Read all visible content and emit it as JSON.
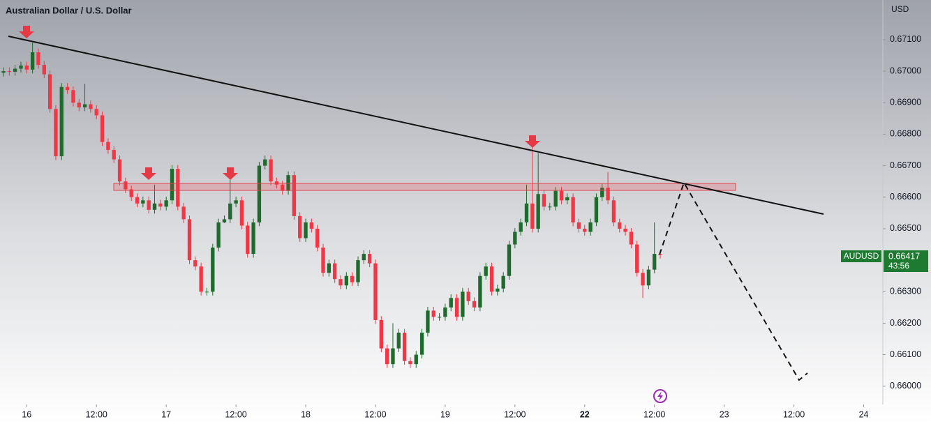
{
  "chart_data": {
    "type": "candlestick",
    "title": "Australian Dollar / U.S. Dollar",
    "currency": "USD",
    "symbol": "AUDUSD",
    "last_price_label": "0.66417",
    "countdown": "43:56",
    "up_color": "#1f6b2d",
    "down_color": "#f23645",
    "xlim": [
      -0.6,
      151.3
    ],
    "ylim": [
      0.65942,
      0.67226
    ],
    "xticks": [
      {
        "value": 4,
        "label": "16"
      },
      {
        "value": 16,
        "label": "12:00"
      },
      {
        "value": 28,
        "label": "17"
      },
      {
        "value": 40,
        "label": "12:00"
      },
      {
        "value": 52,
        "label": "18"
      },
      {
        "value": 64,
        "label": "12:00"
      },
      {
        "value": 76,
        "label": "19"
      },
      {
        "value": 88,
        "label": "12:00"
      },
      {
        "value": 100,
        "label": "22"
      },
      {
        "value": 112,
        "label": "12:00"
      },
      {
        "value": 124,
        "label": "23"
      },
      {
        "value": 136,
        "label": "12:00"
      },
      {
        "value": 148,
        "label": "24"
      }
    ],
    "yticks": [
      {
        "value": 0.671,
        "label": "0.67100"
      },
      {
        "value": 0.67,
        "label": "0.67000"
      },
      {
        "value": 0.669,
        "label": "0.66900"
      },
      {
        "value": 0.668,
        "label": "0.66800"
      },
      {
        "value": 0.667,
        "label": "0.66700"
      },
      {
        "value": 0.666,
        "label": "0.66600"
      },
      {
        "value": 0.665,
        "label": "0.66500"
      },
      {
        "value": 0.663,
        "label": "0.66300"
      },
      {
        "value": 0.662,
        "label": "0.66200"
      },
      {
        "value": 0.661,
        "label": "0.66100"
      },
      {
        "value": 0.66,
        "label": "0.66000"
      }
    ],
    "ohlc": [
      [
        0.66995,
        0.67012,
        0.66983,
        0.67
      ],
      [
        0.67,
        0.67012,
        0.66986,
        0.66998
      ],
      [
        0.66998,
        0.6702,
        0.66986,
        0.67008
      ],
      [
        0.67008,
        0.6703,
        0.66996,
        0.67018
      ],
      [
        0.67018,
        0.6703,
        0.66993,
        0.67005
      ],
      [
        0.67005,
        0.6709,
        0.66993,
        0.6706
      ],
      [
        0.6706,
        0.67072,
        0.67008,
        0.6702
      ],
      [
        0.6702,
        0.67032,
        0.66978,
        0.6699
      ],
      [
        0.6699,
        0.67002,
        0.66868,
        0.6688
      ],
      [
        0.6688,
        0.66892,
        0.66718,
        0.6673
      ],
      [
        0.6673,
        0.66962,
        0.66718,
        0.6695
      ],
      [
        0.6695,
        0.66962,
        0.66928,
        0.6694
      ],
      [
        0.6694,
        0.66952,
        0.66888,
        0.669
      ],
      [
        0.669,
        0.66912,
        0.66873,
        0.66885
      ],
      [
        0.66885,
        0.6696,
        0.66873,
        0.66895
      ],
      [
        0.66895,
        0.66907,
        0.66868,
        0.6688
      ],
      [
        0.6688,
        0.66892,
        0.66848,
        0.6686
      ],
      [
        0.6686,
        0.66872,
        0.66763,
        0.66775
      ],
      [
        0.66775,
        0.66787,
        0.66738,
        0.6675
      ],
      [
        0.6675,
        0.66762,
        0.66708,
        0.6672
      ],
      [
        0.6672,
        0.66732,
        0.66638,
        0.6665
      ],
      [
        0.6665,
        0.66662,
        0.66613,
        0.66625
      ],
      [
        0.66625,
        0.66637,
        0.66588,
        0.666
      ],
      [
        0.666,
        0.66612,
        0.66568,
        0.6658
      ],
      [
        0.6658,
        0.66602,
        0.66568,
        0.6659
      ],
      [
        0.6659,
        0.66602,
        0.66548,
        0.6656
      ],
      [
        0.6656,
        0.6664,
        0.66548,
        0.6658
      ],
      [
        0.6658,
        0.66592,
        0.66558,
        0.6657
      ],
      [
        0.6657,
        0.66602,
        0.66558,
        0.6659
      ],
      [
        0.6659,
        0.66702,
        0.66578,
        0.6669
      ],
      [
        0.6669,
        0.66702,
        0.66558,
        0.6657
      ],
      [
        0.6657,
        0.66582,
        0.66518,
        0.6653
      ],
      [
        0.6653,
        0.66542,
        0.66388,
        0.664
      ],
      [
        0.664,
        0.66412,
        0.66368,
        0.6638
      ],
      [
        0.6638,
        0.66392,
        0.66288,
        0.663
      ],
      [
        0.663,
        0.66312,
        0.66288,
        0.663
      ],
      [
        0.663,
        0.66452,
        0.66288,
        0.6644
      ],
      [
        0.6644,
        0.66532,
        0.66428,
        0.6652
      ],
      [
        0.6652,
        0.66542,
        0.66518,
        0.6653
      ],
      [
        0.6653,
        0.6668,
        0.66518,
        0.6658
      ],
      [
        0.6658,
        0.66602,
        0.66568,
        0.6659
      ],
      [
        0.6659,
        0.66602,
        0.66498,
        0.6651
      ],
      [
        0.6651,
        0.66522,
        0.66408,
        0.6642
      ],
      [
        0.6642,
        0.66532,
        0.66408,
        0.6652
      ],
      [
        0.6652,
        0.66712,
        0.66508,
        0.667
      ],
      [
        0.667,
        0.66732,
        0.66688,
        0.6672
      ],
      [
        0.6672,
        0.66732,
        0.66638,
        0.6665
      ],
      [
        0.6665,
        0.66662,
        0.66628,
        0.6664
      ],
      [
        0.6664,
        0.66652,
        0.66608,
        0.6662
      ],
      [
        0.6662,
        0.66682,
        0.66608,
        0.6667
      ],
      [
        0.6667,
        0.66682,
        0.66528,
        0.6654
      ],
      [
        0.6654,
        0.66552,
        0.66458,
        0.6647
      ],
      [
        0.6647,
        0.66532,
        0.66458,
        0.6652
      ],
      [
        0.6652,
        0.66532,
        0.66488,
        0.665
      ],
      [
        0.665,
        0.66512,
        0.66428,
        0.6644
      ],
      [
        0.6644,
        0.66452,
        0.66348,
        0.6636
      ],
      [
        0.6636,
        0.66402,
        0.66348,
        0.6639
      ],
      [
        0.6639,
        0.66402,
        0.66328,
        0.6634
      ],
      [
        0.6634,
        0.66352,
        0.66308,
        0.6632
      ],
      [
        0.6632,
        0.66362,
        0.66308,
        0.6635
      ],
      [
        0.6635,
        0.66362,
        0.66318,
        0.6633
      ],
      [
        0.6633,
        0.66412,
        0.66318,
        0.664
      ],
      [
        0.664,
        0.66432,
        0.66388,
        0.6642
      ],
      [
        0.6642,
        0.66432,
        0.66378,
        0.6639
      ],
      [
        0.6639,
        0.66402,
        0.66198,
        0.6621
      ],
      [
        0.6621,
        0.66222,
        0.66108,
        0.6612
      ],
      [
        0.6612,
        0.66132,
        0.66058,
        0.6607
      ],
      [
        0.6607,
        0.662,
        0.66058,
        0.6612
      ],
      [
        0.6612,
        0.66182,
        0.66108,
        0.6617
      ],
      [
        0.6617,
        0.66182,
        0.66068,
        0.6608
      ],
      [
        0.6608,
        0.66092,
        0.66058,
        0.6607
      ],
      [
        0.6607,
        0.66112,
        0.66058,
        0.661
      ],
      [
        0.661,
        0.66182,
        0.66088,
        0.6617
      ],
      [
        0.6617,
        0.66252,
        0.66158,
        0.6624
      ],
      [
        0.6624,
        0.66252,
        0.66208,
        0.6622
      ],
      [
        0.6622,
        0.66232,
        0.66208,
        0.6622
      ],
      [
        0.6622,
        0.66262,
        0.66208,
        0.6625
      ],
      [
        0.6625,
        0.66292,
        0.66238,
        0.6628
      ],
      [
        0.6628,
        0.66292,
        0.66208,
        0.6622
      ],
      [
        0.6622,
        0.66312,
        0.66208,
        0.663
      ],
      [
        0.663,
        0.66312,
        0.66258,
        0.6627
      ],
      [
        0.6627,
        0.66282,
        0.66238,
        0.6625
      ],
      [
        0.6625,
        0.66362,
        0.66238,
        0.6635
      ],
      [
        0.6635,
        0.66392,
        0.66338,
        0.6638
      ],
      [
        0.6638,
        0.66392,
        0.66288,
        0.663
      ],
      [
        0.663,
        0.66322,
        0.66288,
        0.6631
      ],
      [
        0.6631,
        0.66362,
        0.66298,
        0.6635
      ],
      [
        0.6635,
        0.66462,
        0.66338,
        0.6645
      ],
      [
        0.6645,
        0.66502,
        0.66438,
        0.6649
      ],
      [
        0.6649,
        0.66532,
        0.66478,
        0.6652
      ],
      [
        0.6652,
        0.6664,
        0.66508,
        0.6658
      ],
      [
        0.6658,
        0.6676,
        0.66488,
        0.665
      ],
      [
        0.665,
        0.6674,
        0.66488,
        0.6661
      ],
      [
        0.6661,
        0.66622,
        0.66558,
        0.6657
      ],
      [
        0.6657,
        0.66582,
        0.66558,
        0.6657
      ],
      [
        0.6657,
        0.66632,
        0.66558,
        0.6662
      ],
      [
        0.6662,
        0.66632,
        0.66578,
        0.6659
      ],
      [
        0.6659,
        0.66612,
        0.66578,
        0.666
      ],
      [
        0.666,
        0.66612,
        0.66508,
        0.6652
      ],
      [
        0.6652,
        0.66532,
        0.66488,
        0.665
      ],
      [
        0.665,
        0.66512,
        0.66478,
        0.6649
      ],
      [
        0.6649,
        0.66532,
        0.66478,
        0.6652
      ],
      [
        0.6652,
        0.66612,
        0.66508,
        0.666
      ],
      [
        0.666,
        0.66642,
        0.66588,
        0.6663
      ],
      [
        0.6663,
        0.6668,
        0.66578,
        0.6659
      ],
      [
        0.6659,
        0.66602,
        0.66508,
        0.6652
      ],
      [
        0.6652,
        0.66532,
        0.66488,
        0.665
      ],
      [
        0.665,
        0.66512,
        0.66478,
        0.6649
      ],
      [
        0.6649,
        0.66502,
        0.66438,
        0.6645
      ],
      [
        0.6645,
        0.66462,
        0.66348,
        0.6636
      ],
      [
        0.6636,
        0.66372,
        0.6628,
        0.6632
      ],
      [
        0.6632,
        0.66382,
        0.66308,
        0.6637
      ],
      [
        0.6637,
        0.6652,
        0.66358,
        0.6642
      ],
      [
        0.6642,
        0.66432,
        0.66405,
        0.66417
      ]
    ]
  }
}
